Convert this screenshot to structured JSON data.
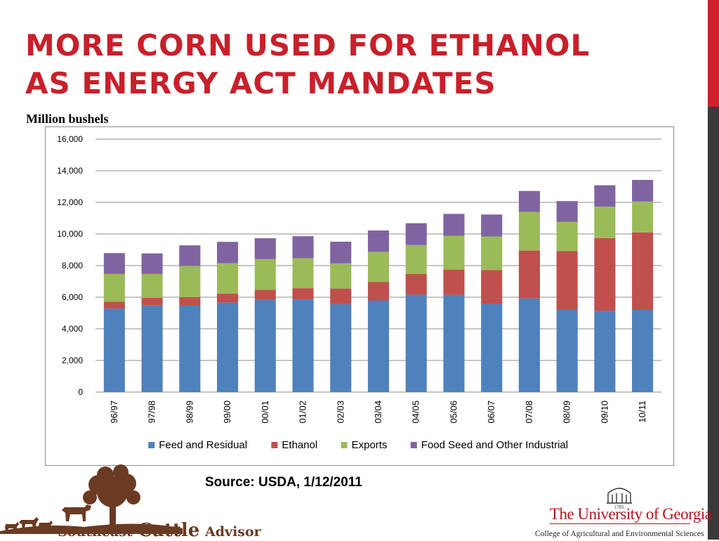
{
  "slide": {
    "title_line1": "MORE CORN USED FOR ETHANOL",
    "title_line2": "AS ENERGY ACT MANDATES",
    "unit_label": "Million bushels",
    "source": "Source: USDA, 1/12/2011",
    "accent_color": "#d0202c"
  },
  "logos": {
    "sca_word1": "Southeast",
    "sca_word2": "Cattle",
    "sca_word3": "Advisor",
    "uga_year": "1785",
    "uga_name": "The University of Georgia",
    "uga_college": "College of Agricultural and Environmental Sciences"
  },
  "chart_data": {
    "type": "bar",
    "stacked": true,
    "title": "",
    "xlabel": "",
    "ylabel": "Million bushels",
    "ylim": [
      0,
      16000
    ],
    "yticks": [
      0,
      2000,
      4000,
      6000,
      8000,
      10000,
      12000,
      14000,
      16000
    ],
    "ytick_labels": [
      "0",
      "2,000",
      "4,000",
      "6,000",
      "8,000",
      "10,000",
      "12,000",
      "14,000",
      "16,000"
    ],
    "grid": true,
    "legend_position": "bottom",
    "categories": [
      "96/97",
      "97/98",
      "98/99",
      "99/00",
      "00/01",
      "01/02",
      "02/03",
      "03/04",
      "04/05",
      "05/06",
      "06/07",
      "07/08",
      "08/09",
      "09/10",
      "10/11"
    ],
    "series": [
      {
        "name": "Feed and Residual",
        "color": "#4f81bd",
        "values": [
          5280,
          5480,
          5470,
          5660,
          5840,
          5860,
          5560,
          5800,
          6160,
          6150,
          5600,
          5920,
          5200,
          5140,
          5200
        ]
      },
      {
        "name": "Ethanol",
        "color": "#c0504d",
        "values": [
          430,
          480,
          530,
          570,
          630,
          710,
          990,
          1170,
          1320,
          1600,
          2120,
          3030,
          3710,
          4600,
          4900
        ]
      },
      {
        "name": "Exports",
        "color": "#9bbb59",
        "values": [
          1760,
          1510,
          1980,
          1920,
          1940,
          1900,
          1590,
          1900,
          1820,
          2130,
          2120,
          2440,
          1850,
          1990,
          1950
        ]
      },
      {
        "name": "Food Seed and Other Industrial",
        "color": "#8064a2",
        "values": [
          1320,
          1300,
          1300,
          1350,
          1320,
          1390,
          1370,
          1350,
          1380,
          1390,
          1390,
          1330,
          1320,
          1350,
          1370
        ]
      }
    ]
  }
}
